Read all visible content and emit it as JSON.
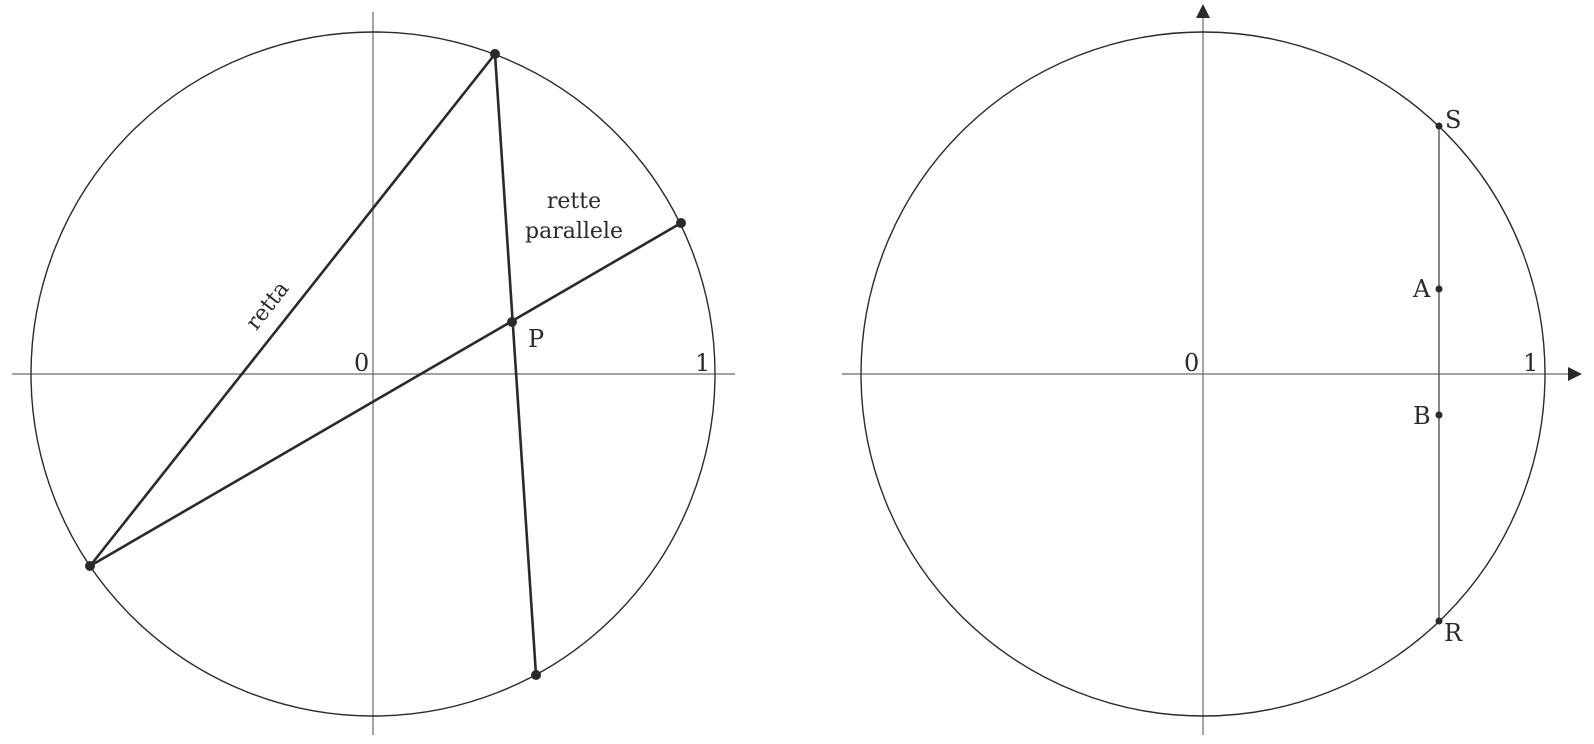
{
  "left_figure": {
    "origin_label": "0",
    "unit_label": "1",
    "line_label": "retta",
    "parallel_label_line1": "rette",
    "parallel_label_line2": "parallele",
    "point_label": "P"
  },
  "right_figure": {
    "origin_label": "0",
    "unit_label": "1",
    "point_s_label": "S",
    "point_a_label": "A",
    "point_b_label": "B",
    "point_r_label": "R"
  }
}
